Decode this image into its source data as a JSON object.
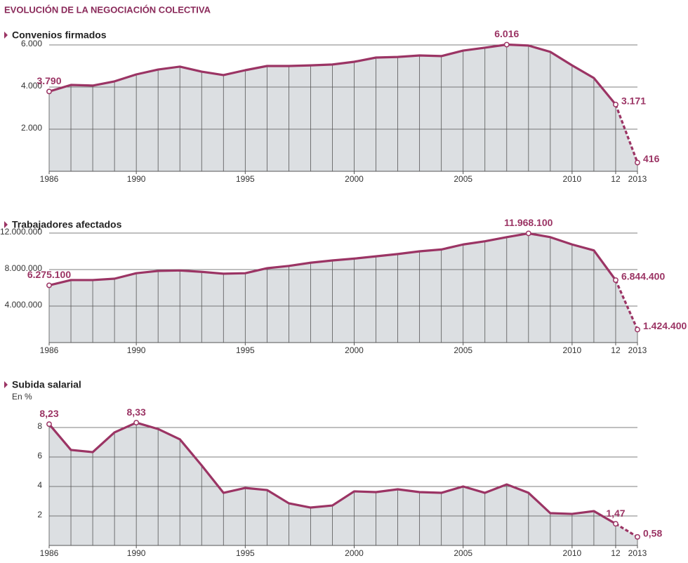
{
  "title": "EVOLUCIÓN DE LA NEGOCIACIÓN COLECTIVA",
  "chart_data": [
    {
      "type": "line",
      "title": "Convenios firmados",
      "x": [
        1986,
        1987,
        1988,
        1989,
        1990,
        1991,
        1992,
        1993,
        1994,
        1995,
        1996,
        1997,
        1998,
        1999,
        2000,
        2001,
        2002,
        2003,
        2004,
        2005,
        2006,
        2007,
        2008,
        2009,
        2010,
        2011,
        2012,
        2013
      ],
      "values": [
        3790,
        4100,
        4070,
        4270,
        4600,
        4830,
        4970,
        4730,
        4570,
        4800,
        5000,
        5000,
        5030,
        5070,
        5200,
        5400,
        5430,
        5500,
        5470,
        5730,
        5870,
        6016,
        5970,
        5670,
        5030,
        4430,
        3171,
        416
      ],
      "value_labels": [
        "3.790",
        null,
        null,
        null,
        null,
        null,
        null,
        null,
        null,
        null,
        null,
        null,
        null,
        null,
        null,
        null,
        null,
        null,
        null,
        null,
        null,
        "6.016",
        null,
        null,
        null,
        null,
        "3.171",
        "416"
      ],
      "color": "#9b3464",
      "fill": "#dcdfe2",
      "dashed_from_x": 2012,
      "xlim": [
        1986,
        2013
      ],
      "xticks": [
        1986,
        1990,
        1995,
        2000,
        2005,
        2010,
        {
          "value": 2012,
          "label": "12"
        },
        2013
      ],
      "ylim": [
        0,
        6200
      ],
      "yticks": [
        {
          "value": 2000,
          "label": "2.000"
        },
        {
          "value": 4000,
          "label": "4.000"
        },
        {
          "value": 6000,
          "label": "6.000"
        }
      ],
      "grid": true
    },
    {
      "type": "line",
      "title": "Trabajadores afectados",
      "x": [
        1986,
        1987,
        1988,
        1989,
        1990,
        1991,
        1992,
        1993,
        1994,
        1995,
        1996,
        1997,
        1998,
        1999,
        2000,
        2001,
        2002,
        2003,
        2004,
        2005,
        2006,
        2007,
        2008,
        2009,
        2010,
        2011,
        2012,
        2013
      ],
      "values": [
        6275100,
        6850000,
        6850000,
        7000000,
        7600000,
        7850000,
        7900000,
        7750000,
        7550000,
        7600000,
        8150000,
        8400000,
        8750000,
        9000000,
        9200000,
        9450000,
        9700000,
        10000000,
        10200000,
        10750000,
        11100000,
        11550000,
        11968100,
        11550000,
        10750000,
        10100000,
        6844400,
        1424400
      ],
      "value_labels": [
        "6.275.100",
        null,
        null,
        null,
        null,
        null,
        null,
        null,
        null,
        null,
        null,
        null,
        null,
        null,
        null,
        null,
        null,
        null,
        null,
        null,
        null,
        null,
        "11.968.100",
        null,
        null,
        null,
        "6.844.400",
        "1.424.400"
      ],
      "color": "#9b3464",
      "fill": "#dcdfe2",
      "dashed_from_x": 2012,
      "xlim": [
        1986,
        2013
      ],
      "xticks": [
        1986,
        1990,
        1995,
        2000,
        2005,
        2010,
        {
          "value": 2012,
          "label": "12"
        },
        2013
      ],
      "ylim": [
        0,
        12500000
      ],
      "yticks": [
        {
          "value": 4000000,
          "label": "4.000.000"
        },
        {
          "value": 8000000,
          "label": "8.000.000"
        },
        {
          "value": 12000000,
          "label": "12.000.000"
        }
      ],
      "grid": true
    },
    {
      "type": "line",
      "title": "Subida salarial",
      "subtitle": "En %",
      "x": [
        1986,
        1987,
        1988,
        1989,
        1990,
        1991,
        1992,
        1993,
        1994,
        1995,
        1996,
        1997,
        1998,
        1999,
        2000,
        2001,
        2002,
        2003,
        2004,
        2005,
        2006,
        2007,
        2008,
        2009,
        2010,
        2011,
        2012,
        2013
      ],
      "values": [
        8.23,
        6.48,
        6.33,
        7.67,
        8.33,
        7.9,
        7.2,
        5.43,
        3.57,
        3.9,
        3.76,
        2.86,
        2.57,
        2.71,
        3.67,
        3.62,
        3.81,
        3.62,
        3.57,
        4.0,
        3.57,
        4.14,
        3.57,
        2.19,
        2.14,
        2.33,
        1.47,
        0.58
      ],
      "value_labels": [
        "8,23",
        null,
        null,
        null,
        "8,33",
        null,
        null,
        null,
        null,
        null,
        null,
        null,
        null,
        null,
        null,
        null,
        null,
        null,
        null,
        null,
        null,
        null,
        null,
        null,
        null,
        null,
        "1,47",
        "0,58"
      ],
      "color": "#9b3464",
      "fill": "#dcdfe2",
      "dashed_from_x": 2012,
      "xlim": [
        1986,
        2013
      ],
      "xticks": [
        1986,
        1990,
        1995,
        2000,
        2005,
        2010,
        {
          "value": 2012,
          "label": "12"
        },
        2013
      ],
      "ylim": [
        0,
        8.7
      ],
      "yticks": [
        2,
        4,
        6,
        8
      ],
      "grid": true
    }
  ]
}
